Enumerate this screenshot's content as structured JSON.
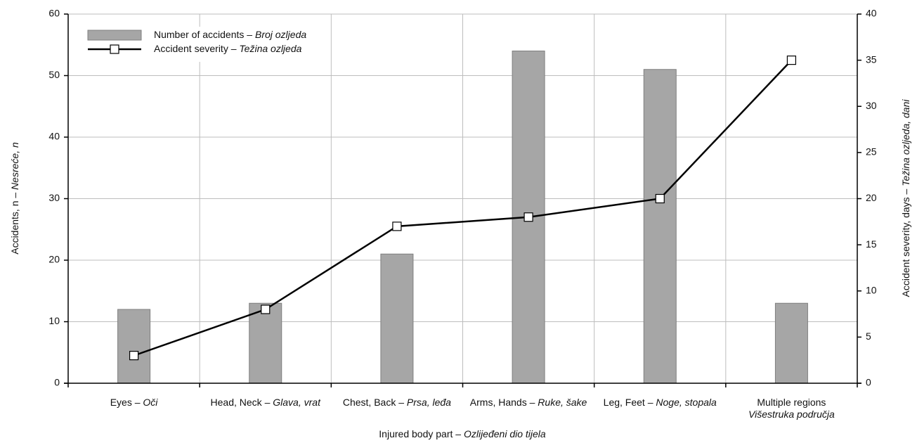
{
  "chart_data": {
    "type": "combo",
    "x_label": "Injured body part – Ozlijeđeni dio tijela",
    "y_label": "Accidents, n – Nesreće, n",
    "y2_label": "Accident severity, days – Težina ozljeda, dani",
    "categories": [
      "Eyes – Oči",
      "Head, Neck – Glava, vrat",
      "Chest, Back – Prsa, leđa",
      "Arms, Hands – Ruke, šake",
      "Leg, Feet – Noge, stopala",
      "Multiple regions\nVišestruka područja"
    ],
    "series": [
      {
        "name": "Number of accidents – Broj ozljeda",
        "type": "bar",
        "color": "#a6a6a6",
        "values": [
          12,
          13,
          21,
          54,
          51,
          13
        ]
      },
      {
        "name": "Accident severity – Težina ozljeda",
        "type": "line",
        "axis": "y2",
        "color": "#000000",
        "values": [
          3,
          8,
          17,
          18,
          20,
          35
        ]
      }
    ],
    "ylim": [
      0,
      60
    ],
    "yticks": [
      0,
      10,
      20,
      30,
      40,
      50,
      60
    ],
    "y2lim": [
      0,
      40
    ],
    "y2ticks": [
      0,
      5,
      10,
      15,
      20,
      25,
      30,
      35,
      40
    ],
    "grid": true,
    "legend": "upper left"
  }
}
